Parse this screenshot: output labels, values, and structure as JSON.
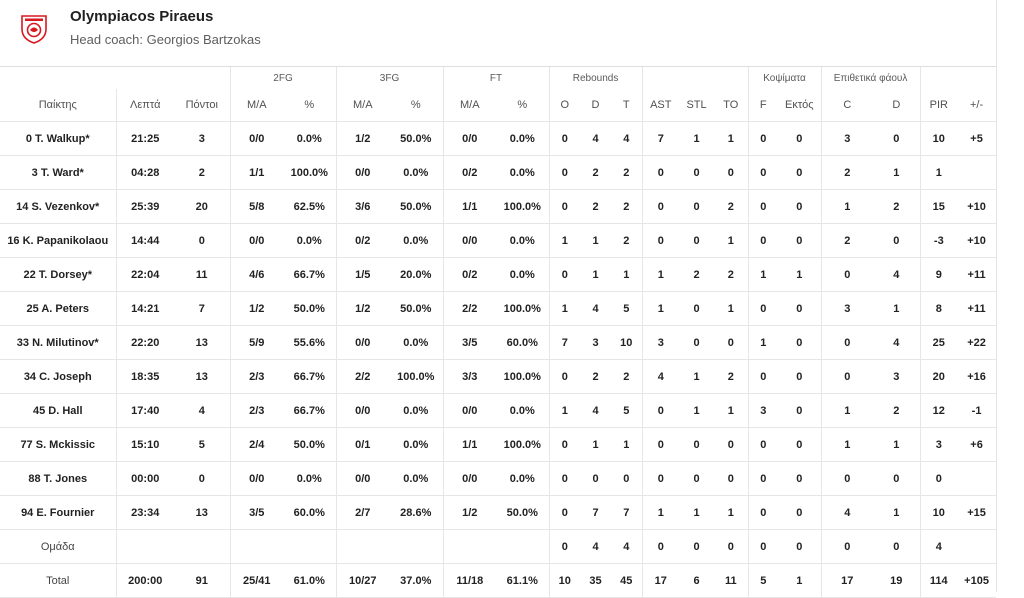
{
  "team": {
    "name": "Olympiacos Piraeus",
    "coach": "Head coach: Georgios Bartzokas",
    "logo_color": "#d71920"
  },
  "groups": {
    "fg2": "2FG",
    "fg3": "3FG",
    "ft": "FT",
    "rebounds": "Rebounds",
    "blocks": "Κοψίματα",
    "fouls": "Επιθετικά φάουλ"
  },
  "columns": [
    "Παίκτης",
    "Λεπτά",
    "Πόντοι",
    "Μ/Α",
    "%",
    "Μ/Α",
    "%",
    "Μ/Α",
    "%",
    "O",
    "D",
    "T",
    "AST",
    "STL",
    "TO",
    "F",
    "Εκτός",
    "C",
    "D",
    "PIR",
    "+/-"
  ],
  "rows": [
    [
      "0 T. Walkup*",
      "21:25",
      "3",
      "0/0",
      "0.0%",
      "1/2",
      "50.0%",
      "0/0",
      "0.0%",
      "0",
      "4",
      "4",
      "7",
      "1",
      "1",
      "0",
      "0",
      "3",
      "0",
      "10",
      "+5"
    ],
    [
      "3 T. Ward*",
      "04:28",
      "2",
      "1/1",
      "100.0%",
      "0/0",
      "0.0%",
      "0/2",
      "0.0%",
      "0",
      "2",
      "2",
      "0",
      "0",
      "0",
      "0",
      "0",
      "2",
      "1",
      "1",
      ""
    ],
    [
      "14 S. Vezenkov*",
      "25:39",
      "20",
      "5/8",
      "62.5%",
      "3/6",
      "50.0%",
      "1/1",
      "100.0%",
      "0",
      "2",
      "2",
      "0",
      "0",
      "2",
      "0",
      "0",
      "1",
      "2",
      "15",
      "+10"
    ],
    [
      "16 K. Papanikolaou",
      "14:44",
      "0",
      "0/0",
      "0.0%",
      "0/2",
      "0.0%",
      "0/0",
      "0.0%",
      "1",
      "1",
      "2",
      "0",
      "0",
      "1",
      "0",
      "0",
      "2",
      "0",
      "-3",
      "+10"
    ],
    [
      "22 T. Dorsey*",
      "22:04",
      "11",
      "4/6",
      "66.7%",
      "1/5",
      "20.0%",
      "0/2",
      "0.0%",
      "0",
      "1",
      "1",
      "1",
      "2",
      "2",
      "1",
      "1",
      "0",
      "4",
      "9",
      "+11"
    ],
    [
      "25 A. Peters",
      "14:21",
      "7",
      "1/2",
      "50.0%",
      "1/2",
      "50.0%",
      "2/2",
      "100.0%",
      "1",
      "4",
      "5",
      "1",
      "0",
      "1",
      "0",
      "0",
      "3",
      "1",
      "8",
      "+11"
    ],
    [
      "33 N. Milutinov*",
      "22:20",
      "13",
      "5/9",
      "55.6%",
      "0/0",
      "0.0%",
      "3/5",
      "60.0%",
      "7",
      "3",
      "10",
      "3",
      "0",
      "0",
      "1",
      "0",
      "0",
      "4",
      "25",
      "+22"
    ],
    [
      "34 C. Joseph",
      "18:35",
      "13",
      "2/3",
      "66.7%",
      "2/2",
      "100.0%",
      "3/3",
      "100.0%",
      "0",
      "2",
      "2",
      "4",
      "1",
      "2",
      "0",
      "0",
      "0",
      "3",
      "20",
      "+16"
    ],
    [
      "45 D. Hall",
      "17:40",
      "4",
      "2/3",
      "66.7%",
      "0/0",
      "0.0%",
      "0/0",
      "0.0%",
      "1",
      "4",
      "5",
      "0",
      "1",
      "1",
      "3",
      "0",
      "1",
      "2",
      "12",
      "-1"
    ],
    [
      "77 S. Mckissic",
      "15:10",
      "5",
      "2/4",
      "50.0%",
      "0/1",
      "0.0%",
      "1/1",
      "100.0%",
      "0",
      "1",
      "1",
      "0",
      "0",
      "0",
      "0",
      "0",
      "1",
      "1",
      "3",
      "+6"
    ],
    [
      "88 T. Jones",
      "00:00",
      "0",
      "0/0",
      "0.0%",
      "0/0",
      "0.0%",
      "0/0",
      "0.0%",
      "0",
      "0",
      "0",
      "0",
      "0",
      "0",
      "0",
      "0",
      "0",
      "0",
      "0",
      ""
    ],
    [
      "94 E. Fournier",
      "23:34",
      "13",
      "3/5",
      "60.0%",
      "2/7",
      "28.6%",
      "1/2",
      "50.0%",
      "0",
      "7",
      "7",
      "1",
      "1",
      "1",
      "0",
      "0",
      "4",
      "1",
      "10",
      "+15"
    ]
  ],
  "team_row": [
    "Ομάδα",
    "",
    "",
    "",
    "",
    "",
    "",
    "",
    "",
    "0",
    "4",
    "4",
    "0",
    "0",
    "0",
    "0",
    "0",
    "0",
    "0",
    "4",
    ""
  ],
  "total_row": [
    "Total",
    "200:00",
    "91",
    "25/41",
    "61.0%",
    "10/27",
    "37.0%",
    "11/18",
    "61.1%",
    "10",
    "35",
    "45",
    "17",
    "6",
    "11",
    "5",
    "1",
    "17",
    "19",
    "114",
    "+105"
  ]
}
